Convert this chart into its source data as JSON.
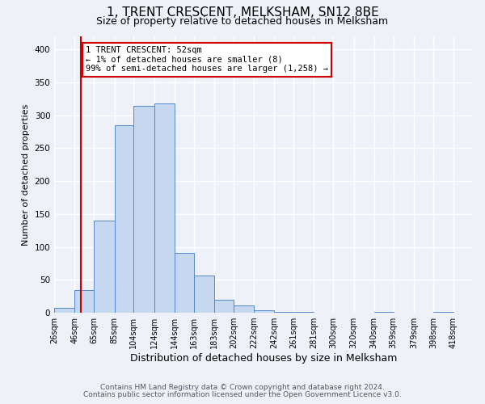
{
  "title": "1, TRENT CRESCENT, MELKSHAM, SN12 8BE",
  "subtitle": "Size of property relative to detached houses in Melksham",
  "xlabel": "Distribution of detached houses by size in Melksham",
  "ylabel": "Number of detached properties",
  "bar_left_edges": [
    26,
    46,
    65,
    85,
    104,
    124,
    144,
    163,
    183,
    202,
    222,
    242,
    261,
    281,
    300,
    320,
    340,
    359,
    379,
    398
  ],
  "bar_heights": [
    7,
    35,
    140,
    285,
    315,
    318,
    91,
    57,
    20,
    11,
    4,
    1,
    1,
    0,
    0,
    0,
    1,
    0,
    0,
    1
  ],
  "bar_color": "#c5d8f0",
  "bar_edge_color": "#5588cc",
  "ylim": [
    0,
    420
  ],
  "yticks": [
    0,
    50,
    100,
    150,
    200,
    250,
    300,
    350,
    400
  ],
  "xtick_labels": [
    "26sqm",
    "46sqm",
    "65sqm",
    "85sqm",
    "104sqm",
    "124sqm",
    "144sqm",
    "163sqm",
    "183sqm",
    "202sqm",
    "222sqm",
    "242sqm",
    "261sqm",
    "281sqm",
    "300sqm",
    "320sqm",
    "340sqm",
    "359sqm",
    "379sqm",
    "398sqm",
    "418sqm"
  ],
  "xtick_positions": [
    26,
    46,
    65,
    85,
    104,
    124,
    144,
    163,
    183,
    202,
    222,
    242,
    261,
    281,
    300,
    320,
    340,
    359,
    379,
    398,
    418
  ],
  "vline_x": 52,
  "vline_color": "#cc0000",
  "annotation_title": "1 TRENT CRESCENT: 52sqm",
  "annotation_line1": "← 1% of detached houses are smaller (8)",
  "annotation_line2": "99% of semi-detached houses are larger (1,258) →",
  "annotation_box_color": "#ffffff",
  "annotation_box_edge_color": "#cc0000",
  "footnote1": "Contains HM Land Registry data © Crown copyright and database right 2024.",
  "footnote2": "Contains public sector information licensed under the Open Government Licence v3.0.",
  "bg_color": "#eef2f8",
  "grid_color": "#ffffff",
  "title_fontsize": 11,
  "subtitle_fontsize": 9,
  "xlabel_fontsize": 9,
  "ylabel_fontsize": 8,
  "tick_fontsize": 7,
  "annot_fontsize": 7.5,
  "footnote_fontsize": 6.5
}
